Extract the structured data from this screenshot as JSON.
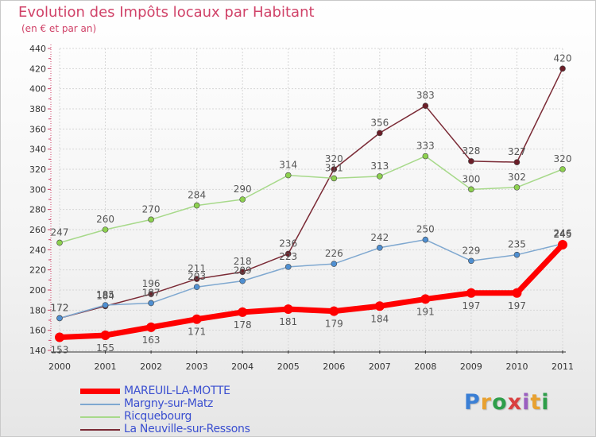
{
  "header": {
    "title": "Evolution des Impôts locaux par Habitant",
    "subtitle": "(en € et par an)"
  },
  "brand": {
    "logo_text": "Proxiti",
    "letter_colors": [
      "#3a7fd5",
      "#e8a130",
      "#2e9e4a",
      "#d94040",
      "#9b5fc0",
      "#e8a130",
      "#2e9e4a"
    ]
  },
  "chart_data": {
    "type": "line",
    "x": [
      "2000",
      "2001",
      "2002",
      "2003",
      "2004",
      "2005",
      "2006",
      "2007",
      "2008",
      "2009",
      "2010",
      "2011"
    ],
    "ylim": [
      140,
      440
    ],
    "yticks": [
      140,
      160,
      180,
      200,
      220,
      240,
      260,
      280,
      300,
      320,
      340,
      360,
      380,
      400,
      420,
      440
    ],
    "grid": true,
    "legend_position": "bottom-left",
    "series": [
      {
        "name": "La Neuville-sur-Ressons",
        "color": "#7a2a35",
        "marker": "#6b1e28",
        "values": [
          172,
          184,
          196,
          211,
          218,
          236,
          320,
          356,
          383,
          328,
          327,
          420
        ]
      },
      {
        "name": "Ricquebourg",
        "color": "#a7d98a",
        "marker": "#8dd14f",
        "values": [
          247,
          260,
          270,
          284,
          290,
          314,
          311,
          313,
          333,
          300,
          302,
          320
        ]
      },
      {
        "name": "Margny-sur-Matz",
        "color": "#7fa8d0",
        "marker": "#4f8fd1",
        "values": [
          172,
          185,
          187,
          203,
          209,
          223,
          226,
          242,
          250,
          229,
          235,
          246
        ]
      },
      {
        "name": "MAREUIL-LA-MOTTE",
        "color": "#ff0000",
        "marker": "#ff0000",
        "values": [
          153,
          155,
          163,
          171,
          178,
          181,
          179,
          184,
          191,
          197,
          197,
          245
        ]
      }
    ]
  },
  "legend_items": [
    {
      "name": "MAREUIL-LA-MOTTE",
      "color": "#ff0000"
    },
    {
      "name": "Margny-sur-Matz",
      "color": "#7fa8d0"
    },
    {
      "name": "Ricquebourg",
      "color": "#a7d98a"
    },
    {
      "name": "La Neuville-sur-Ressons",
      "color": "#7a2a35"
    }
  ]
}
